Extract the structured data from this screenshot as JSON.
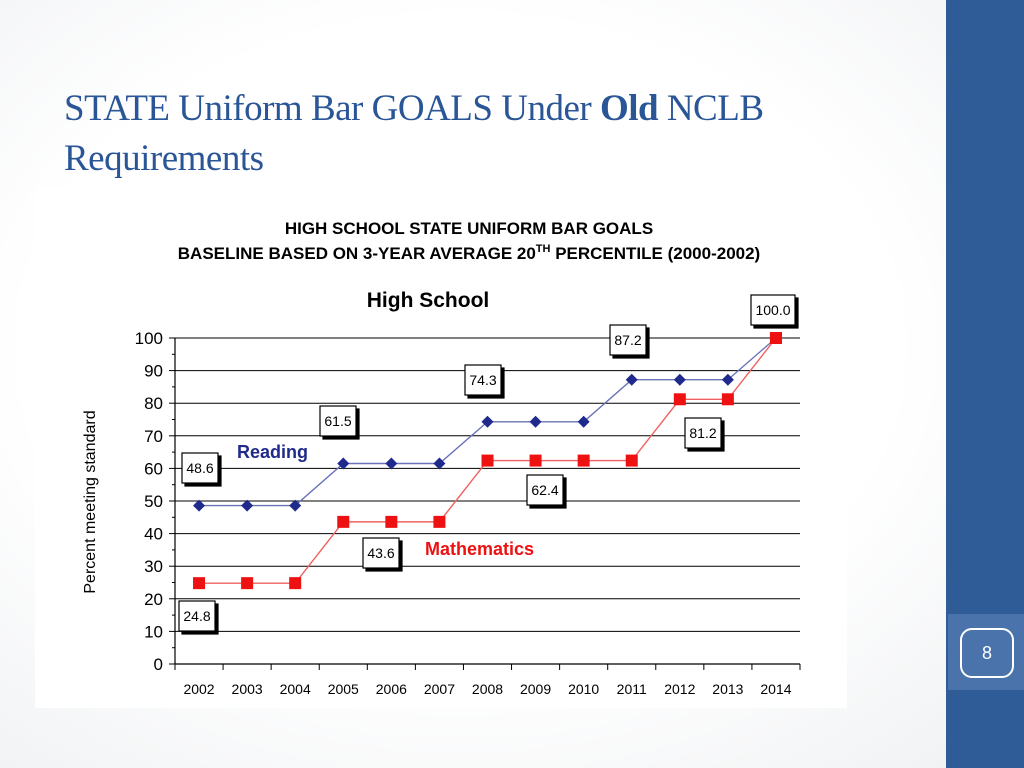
{
  "slide": {
    "title_part1": "STATE Uniform Bar GOALS Under ",
    "title_bold": "Old",
    "title_part2": " NCLB",
    "title_line2": "Requirements",
    "page_number": "8"
  },
  "colors": {
    "title": "#2a5597",
    "sidebar": "#2f5b97",
    "reading": "#1f2a8c",
    "math": "#ee1111"
  },
  "chart_data": {
    "type": "line",
    "header_line1": "HIGH SCHOOL STATE UNIFORM BAR GOALS",
    "header_line2_prefix": "BASELINE BASED ON 3-YEAR AVERAGE 20",
    "header_line2_sup": "TH",
    "header_line2_suffix": " PERCENTILE (2000-2002)",
    "title": "High School",
    "ylabel": "Percent meeting standard",
    "xlabel": "",
    "ylim": [
      0,
      100
    ],
    "yticks": [
      0,
      10,
      20,
      30,
      40,
      50,
      60,
      70,
      80,
      90,
      100
    ],
    "grid": true,
    "categories": [
      "2002",
      "2003",
      "2004",
      "2005",
      "2006",
      "2007",
      "2008",
      "2009",
      "2010",
      "2011",
      "2012",
      "2013",
      "2014"
    ],
    "series": [
      {
        "name": "Reading",
        "marker": "diamond",
        "values": [
          48.6,
          48.6,
          48.6,
          61.5,
          61.5,
          61.5,
          74.3,
          74.3,
          74.3,
          87.2,
          87.2,
          87.2,
          100.0
        ]
      },
      {
        "name": "Mathematics",
        "marker": "square",
        "values": [
          24.8,
          24.8,
          24.8,
          43.6,
          43.6,
          43.6,
          62.4,
          62.4,
          62.4,
          62.4,
          81.2,
          81.2,
          100.0
        ]
      }
    ],
    "annotations": [
      "48.6",
      "61.5",
      "74.3",
      "87.2",
      "100.0",
      "24.8",
      "43.6",
      "62.4",
      "81.2"
    ]
  }
}
